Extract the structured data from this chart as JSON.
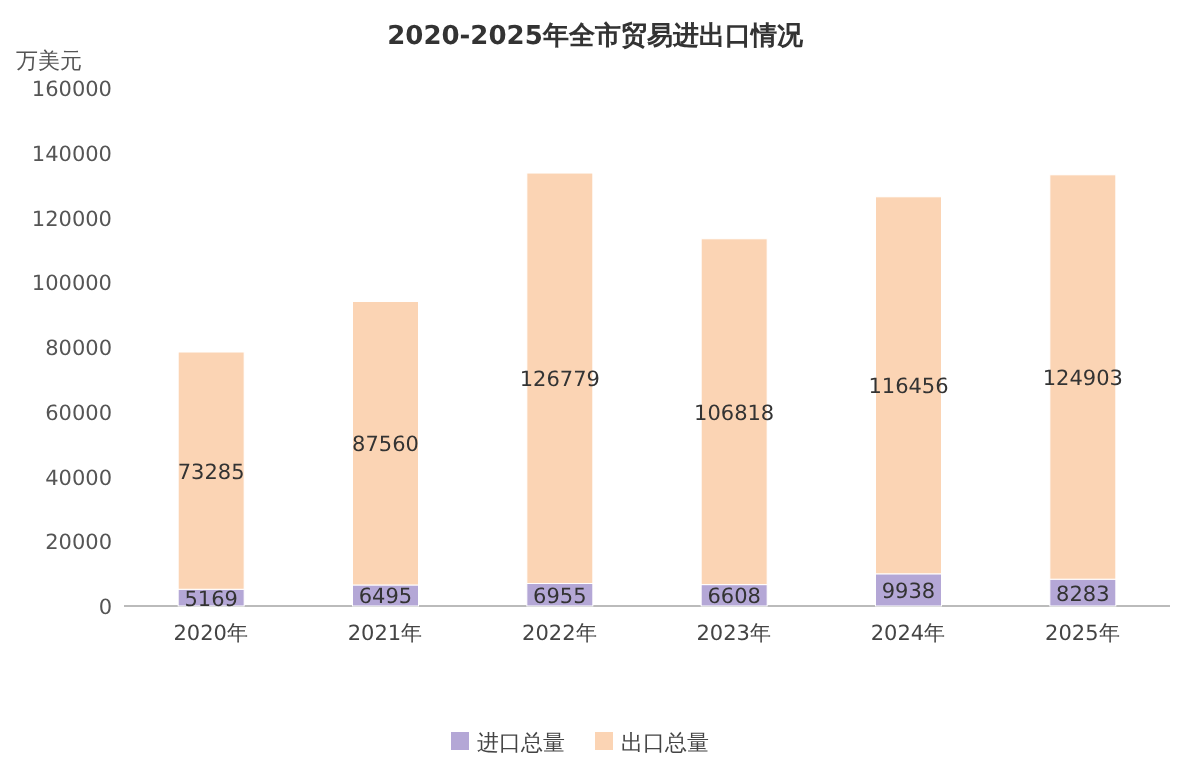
{
  "chart_data": {
    "type": "bar",
    "title": "2020-2025年全市贸易进出口情况",
    "ylabel": "万美元",
    "stacked": true,
    "data_labels": true,
    "legend": "bottom",
    "categories": [
      "2020年",
      "2021年",
      "2022年",
      "2023年",
      "2024年",
      "2025年"
    ],
    "series": [
      {
        "name": "进口总量",
        "color": "#b4a7d6",
        "values": [
          5169,
          6495,
          6955,
          6608,
          9938,
          8283
        ]
      },
      {
        "name": "出口总量",
        "color": "#fbd4b4",
        "values": [
          73285,
          87560,
          126779,
          106818,
          116456,
          124903
        ]
      }
    ],
    "ylim": [
      0,
      160000
    ],
    "yticks": [
      0,
      20000,
      40000,
      60000,
      80000,
      100000,
      120000,
      140000,
      160000
    ]
  }
}
